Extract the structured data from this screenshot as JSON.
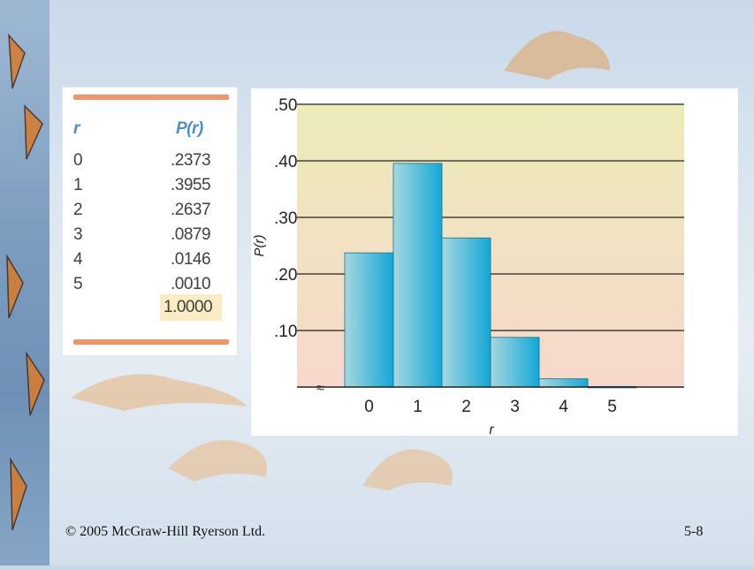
{
  "table": {
    "headers": {
      "r": "r",
      "p": "P(r)"
    },
    "rows": [
      {
        "r": "0",
        "p": ".2373"
      },
      {
        "r": "1",
        "p": ".3955"
      },
      {
        "r": "2",
        "p": ".2637"
      },
      {
        "r": "3",
        "p": ".0879"
      },
      {
        "r": "4",
        "p": ".0146"
      },
      {
        "r": "5",
        "p": ".0010"
      }
    ],
    "total": "1.0000"
  },
  "chart_data": {
    "type": "bar",
    "categories": [
      "0",
      "1",
      "2",
      "3",
      "4",
      "5"
    ],
    "values": [
      0.2373,
      0.3955,
      0.2637,
      0.0879,
      0.0146,
      0.001
    ],
    "xlabel": "r",
    "ylabel": "P(r)",
    "ylim": [
      0,
      0.5
    ],
    "yticks": [
      0.1,
      0.2,
      0.3,
      0.4,
      0.5
    ],
    "ytick_labels": [
      ".10",
      ".20",
      ".30",
      ".40",
      ".50"
    ],
    "axis_break": "≈",
    "grid": true
  },
  "footer": {
    "copyright": "© 2005 McGraw-Hill Ryerson Ltd.",
    "slide_number": "5-8"
  },
  "colors": {
    "bar_light": "#a6d7e0",
    "bar_dark": "#12a8d6",
    "rule": "#f2956b",
    "header_text": "#4e8fcb",
    "highlight": "#faedc4"
  }
}
